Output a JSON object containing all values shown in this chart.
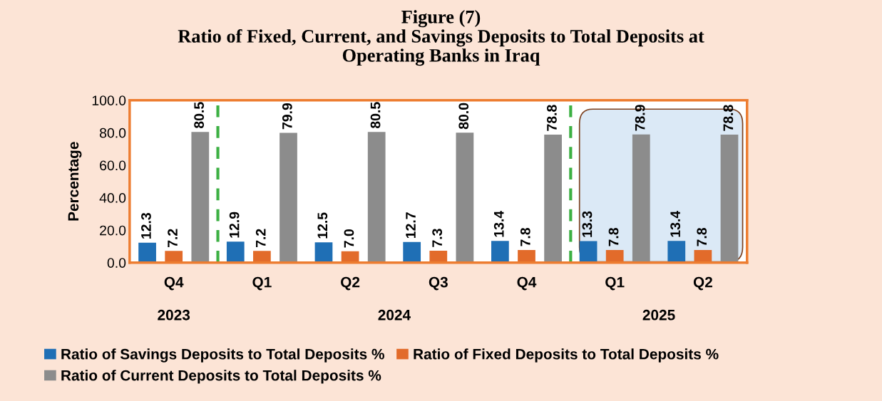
{
  "chart_data": {
    "type": "bar",
    "title": "Figure (7)\nRatio of Fixed, Current, and Savings Deposits to Total Deposits at\nOperating Banks in Iraq",
    "ylabel": "Percentage",
    "categories": [
      "Q4",
      "Q1",
      "Q2",
      "Q3",
      "Q4",
      "Q1",
      "Q2"
    ],
    "series": [
      {
        "name": "Ratio of Savings Deposits to Total Deposits %",
        "color": "#1f6fb5",
        "values": [
          12.3,
          12.9,
          12.5,
          12.7,
          13.4,
          13.3,
          13.4
        ],
        "value_labels": [
          "12.3",
          "12.9",
          "12.5",
          "12.7",
          "13.4",
          "13.3",
          "13.4"
        ]
      },
      {
        "name": "Ratio of Fixed Deposits to Total Deposits %",
        "color": "#e26b2a",
        "values": [
          7.2,
          7.2,
          7.0,
          7.3,
          7.8,
          7.8,
          7.8
        ],
        "value_labels": [
          "7.2",
          "7.2",
          "7.0",
          "7.3",
          "7.8",
          "7.8",
          "7.8"
        ]
      },
      {
        "name": "Ratio of Current Deposits to Total Deposits %",
        "color": "#8c8c8c",
        "values": [
          80.5,
          79.9,
          80.5,
          80.0,
          78.8,
          78.9,
          78.8
        ],
        "value_labels": [
          "80.5",
          "79.9",
          "80.5",
          "80.0",
          "78.8",
          "78.9",
          "78.8"
        ]
      }
    ],
    "ylim": [
      0,
      100
    ],
    "yticks": [
      {
        "value": 0,
        "label": "0.0"
      },
      {
        "value": 20,
        "label": "20.0"
      },
      {
        "value": 40,
        "label": "40.0"
      },
      {
        "value": 60,
        "label": "60.0"
      },
      {
        "value": 80,
        "label": "80.0"
      },
      {
        "value": 100,
        "label": "100.0"
      }
    ],
    "annotations": [
      "2023",
      "2024",
      "2025"
    ],
    "grid": false,
    "legend": "bottom"
  }
}
